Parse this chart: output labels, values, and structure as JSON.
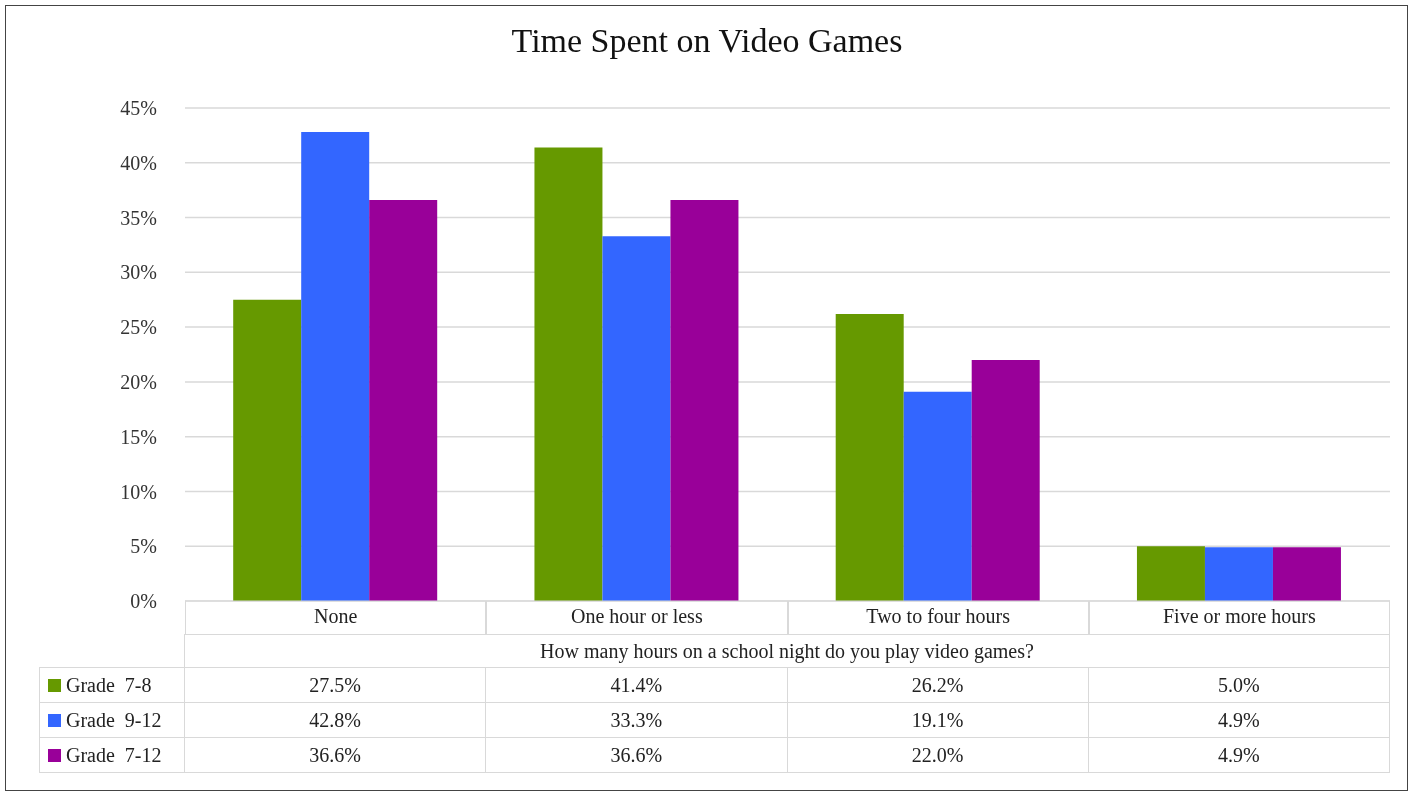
{
  "chart_data": {
    "type": "bar",
    "title": "Time Spent on Video Games",
    "xlabel": "How many hours on a school night do you play video games?",
    "categories": [
      "None",
      "One hour or less",
      "Two to four hours",
      "Five or more hours"
    ],
    "series": [
      {
        "name": "Grade  7-8",
        "color": "#669900",
        "values": [
          27.5,
          41.4,
          26.2,
          5.0
        ],
        "value_labels": [
          "27.5%",
          "41.4%",
          "26.2%",
          "5.0%"
        ]
      },
      {
        "name": "Grade  9-12",
        "color": "#3366ff",
        "values": [
          42.8,
          33.3,
          19.1,
          4.9
        ],
        "value_labels": [
          "42.8%",
          "33.3%",
          "19.1%",
          "4.9%"
        ]
      },
      {
        "name": "Grade  7-12",
        "color": "#990099",
        "values": [
          36.6,
          36.6,
          22.0,
          4.9
        ],
        "value_labels": [
          "36.6%",
          "36.6%",
          "22.0%",
          "4.9%"
        ]
      }
    ],
    "ylim": [
      0,
      45
    ],
    "yticks": [
      {
        "value": 0,
        "label": "0%"
      },
      {
        "value": 5,
        "label": "5%"
      },
      {
        "value": 10,
        "label": "10%"
      },
      {
        "value": 15,
        "label": "15%"
      },
      {
        "value": 20,
        "label": "20%"
      },
      {
        "value": 25,
        "label": "25%"
      },
      {
        "value": 30,
        "label": "30%"
      },
      {
        "value": 35,
        "label": "35%"
      },
      {
        "value": 40,
        "label": "40%"
      },
      {
        "value": 45,
        "label": "45%"
      }
    ],
    "grid": "y",
    "legend": "bottom"
  }
}
